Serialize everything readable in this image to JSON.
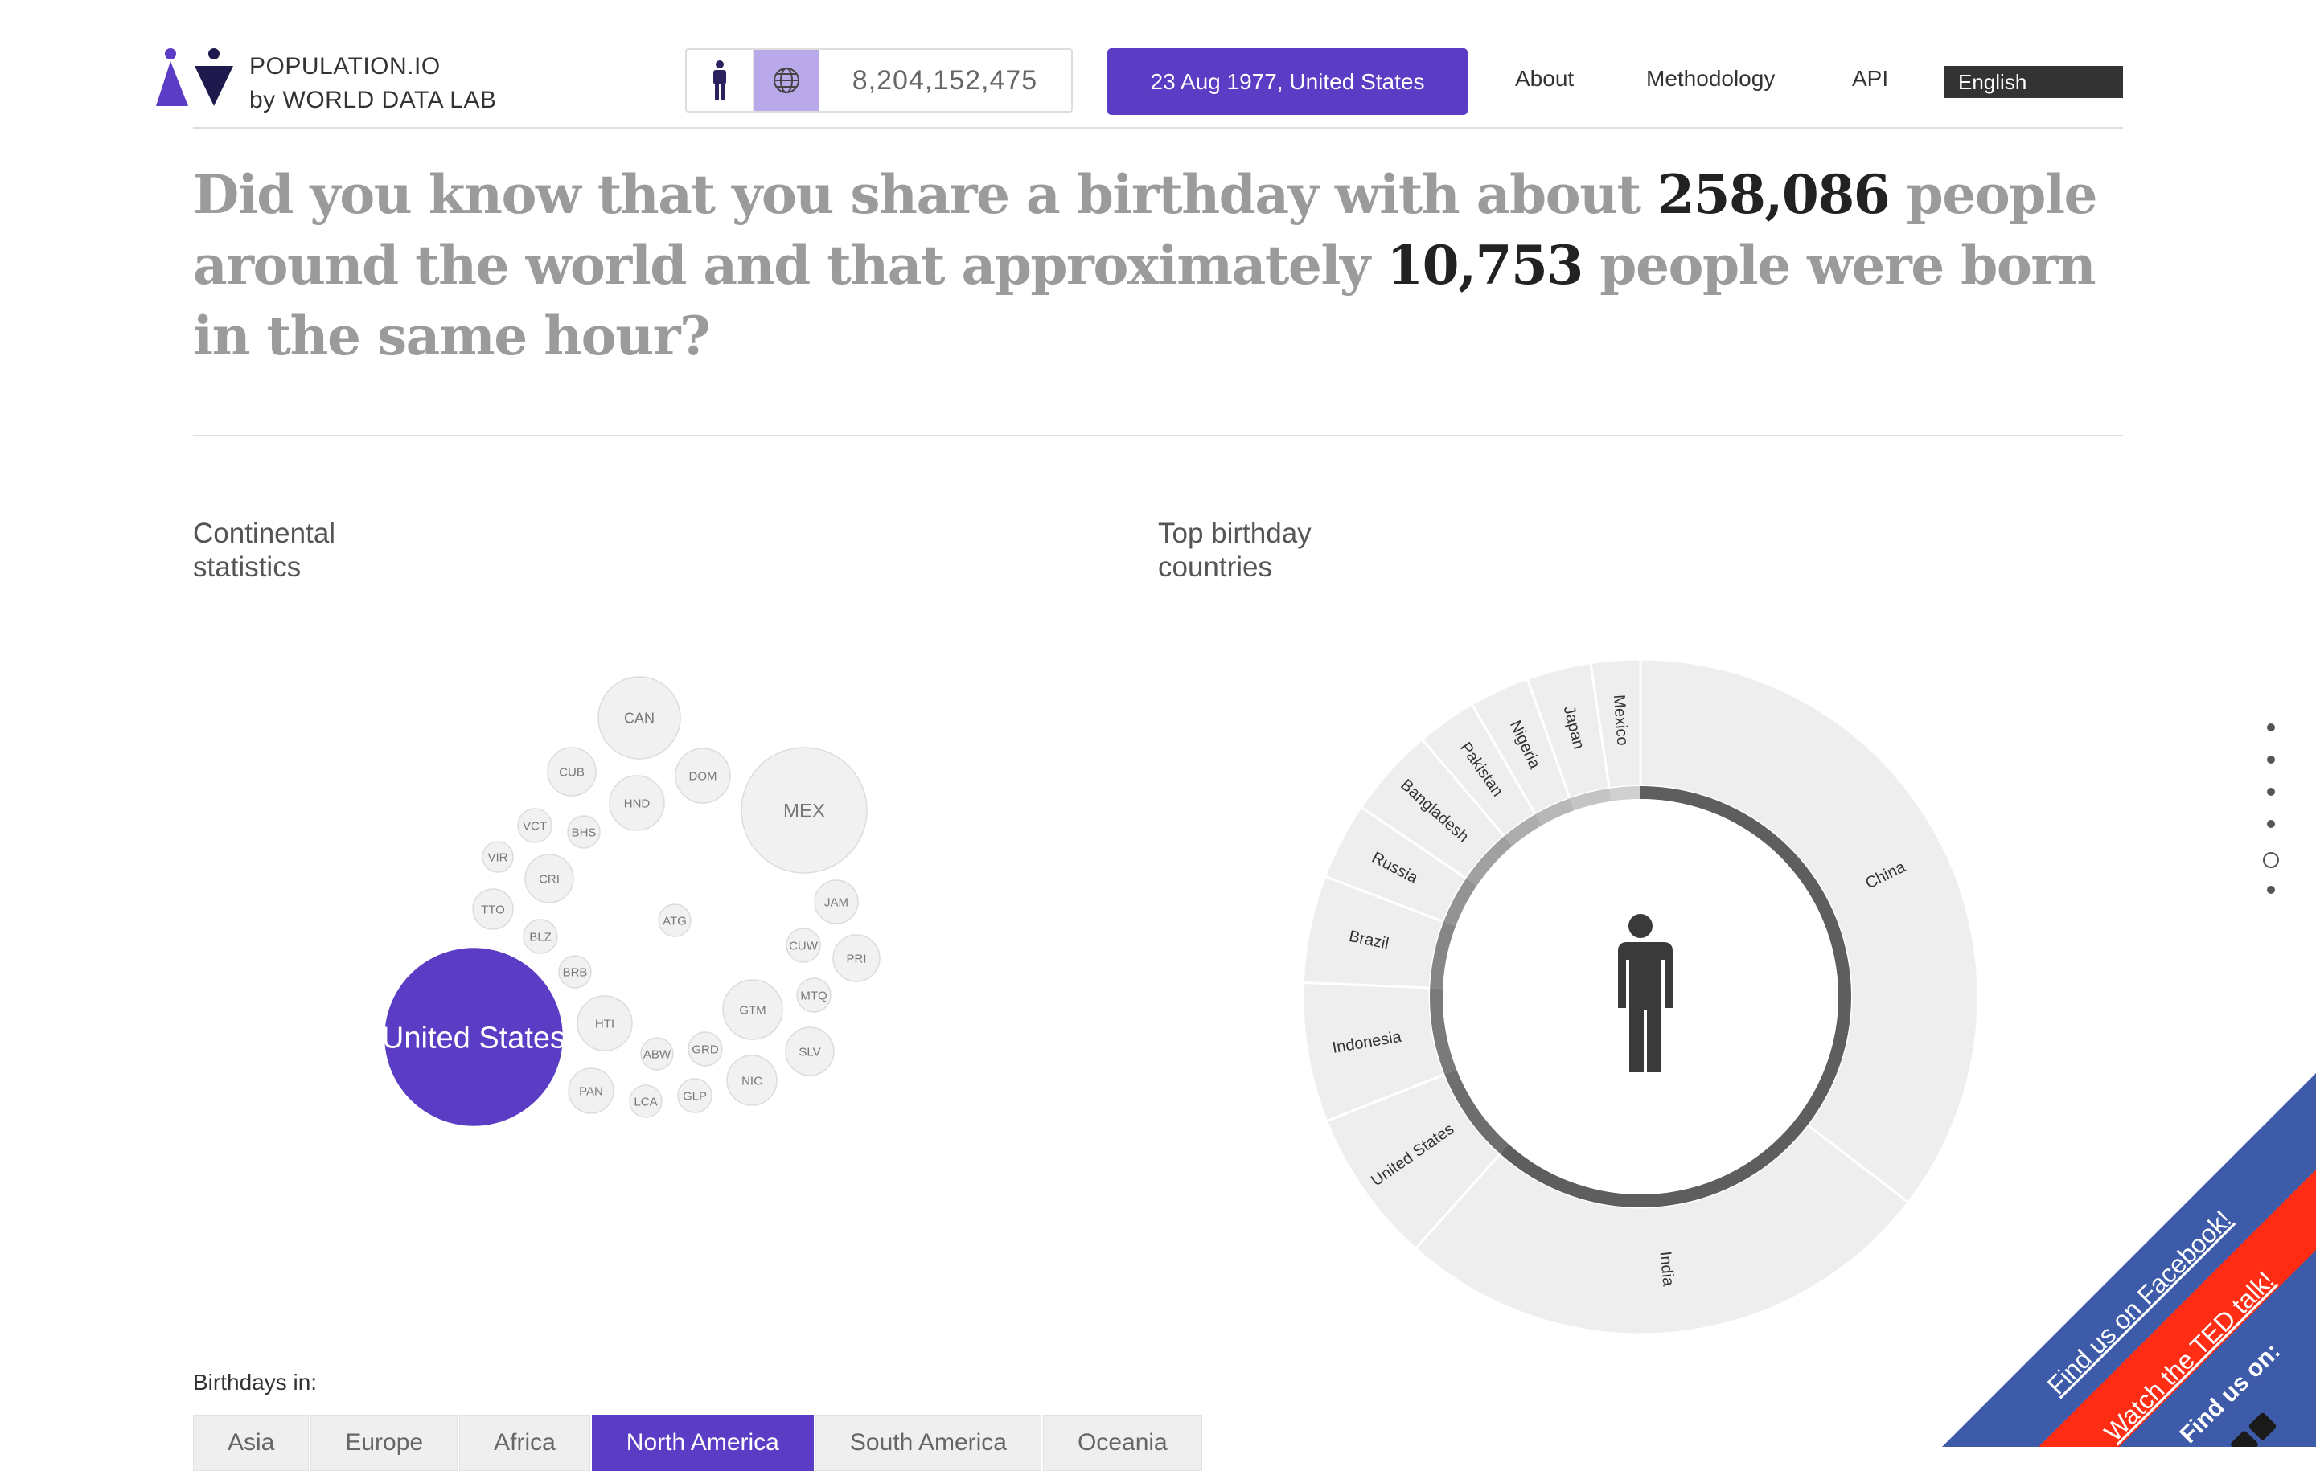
{
  "header": {
    "brand_line1": "POPULATION.IO",
    "brand_line2": "by WORLD DATA LAB",
    "population_counter": "8,204,152,475",
    "date_button": "23 Aug 1977, United States",
    "nav": [
      "About",
      "Methodology",
      "API"
    ],
    "language": "English"
  },
  "headline": {
    "part1": "Did you know that you share a birthday with about ",
    "count_day": "258,086",
    "part2": " people around the world and that approximately ",
    "count_hour": "10,753",
    "part3": " people were born in the same hour?"
  },
  "sections": {
    "continental_title": "Continental statistics",
    "top_title": "Top birthday countries"
  },
  "bubbles": [
    {
      "code": "CAN",
      "highlight": false
    },
    {
      "code": "CUB",
      "highlight": false
    },
    {
      "code": "DOM",
      "highlight": false
    },
    {
      "code": "HND",
      "highlight": false
    },
    {
      "code": "MEX",
      "highlight": false
    },
    {
      "code": "VCT",
      "highlight": false
    },
    {
      "code": "BHS",
      "highlight": false
    },
    {
      "code": "VIR",
      "highlight": false
    },
    {
      "code": "CRI",
      "highlight": false
    },
    {
      "code": "TTO",
      "highlight": false
    },
    {
      "code": "BLZ",
      "highlight": false
    },
    {
      "code": "ATG",
      "highlight": false
    },
    {
      "code": "JAM",
      "highlight": false
    },
    {
      "code": "CUW",
      "highlight": false
    },
    {
      "code": "PRI",
      "highlight": false
    },
    {
      "code": "BRB",
      "highlight": false
    },
    {
      "code": "MTQ",
      "highlight": false
    },
    {
      "code": "United States",
      "highlight": true
    },
    {
      "code": "HTI",
      "highlight": false
    },
    {
      "code": "GTM",
      "highlight": false
    },
    {
      "code": "ABW",
      "highlight": false
    },
    {
      "code": "GRD",
      "highlight": false
    },
    {
      "code": "SLV",
      "highlight": false
    },
    {
      "code": "NIC",
      "highlight": false
    },
    {
      "code": "PAN",
      "highlight": false
    },
    {
      "code": "LCA",
      "highlight": false
    },
    {
      "code": "GLP",
      "highlight": false
    }
  ],
  "chart_data": {
    "type": "pie",
    "categories": [
      "China",
      "India",
      "United States",
      "Indonesia",
      "Brazil",
      "Russia",
      "Bangladesh",
      "Pakistan",
      "Nigeria",
      "Japan",
      "Mexico"
    ],
    "values": [
      34.5,
      25.5,
      7.2,
      6.5,
      5.0,
      3.6,
      4.2,
      2.8,
      2.8,
      3.0,
      2.3
    ]
  },
  "birthdays_in": {
    "label": "Birthdays in:",
    "tabs": [
      "Asia",
      "Europe",
      "Africa",
      "North America",
      "South America",
      "Oceania"
    ],
    "active": "North America"
  },
  "ribbons": {
    "facebook": "Find us on Facebook!",
    "ted": "Watch the TED talk!",
    "social": "Find us on:"
  },
  "colors": {
    "accent": "#5b3cc4",
    "bubble_fill": "#f1f1f1",
    "donut_segment": "#eeeeee",
    "ribbon_blue": "#3e5ba9",
    "ribbon_red": "#ff2d14"
  }
}
